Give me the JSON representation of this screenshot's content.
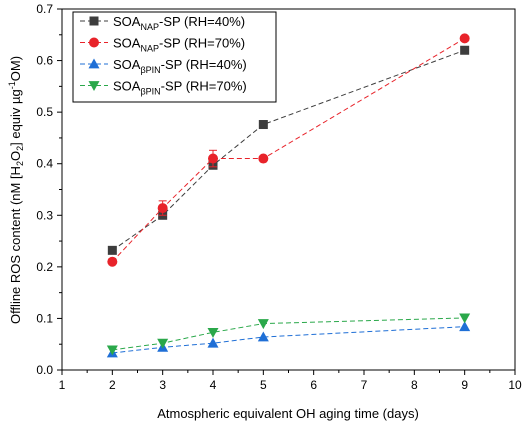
{
  "chart_data": {
    "type": "scatter",
    "xlabel": "Atmospheric equivalent OH aging time (days)",
    "ylabel": "Offline ROS content (nM [H2O2] equiv µg⁻¹OM)",
    "ylabel_parts": {
      "pre": "Offline ROS content (nM [H",
      "sub1": "2",
      "mid": "O",
      "sub2": "2",
      "post1": "] equiv µg",
      "sup": "-1",
      "post2": "OM)"
    },
    "xlim": [
      1,
      10
    ],
    "ylim": [
      0.0,
      0.7
    ],
    "xticks": [
      1,
      2,
      3,
      4,
      5,
      6,
      7,
      8,
      9,
      10
    ],
    "yticks": [
      0.0,
      0.1,
      0.2,
      0.3,
      0.4,
      0.5,
      0.6,
      0.7
    ],
    "ytick_labels": [
      "0.0",
      "0.1",
      "0.2",
      "0.3",
      "0.4",
      "0.5",
      "0.6",
      "0.7"
    ],
    "legend_position": "top-left",
    "series": [
      {
        "name": "SOA_NAP-SP (RH=40%)",
        "label_base": "SOA",
        "label_sub": "NAP",
        "label_tail": "-SP (RH=40%)",
        "marker": "square",
        "color": "#3d3d3d",
        "x": [
          2,
          3,
          4,
          5,
          9
        ],
        "y": [
          0.232,
          0.3,
          0.397,
          0.476,
          0.62
        ],
        "err": [
          0,
          0,
          0,
          0,
          0
        ]
      },
      {
        "name": "SOA_NAP-SP (RH=70%)",
        "label_base": "SOA",
        "label_sub": "NAP",
        "label_tail": "-SP (RH=70%)",
        "marker": "circle",
        "color": "#e8232a",
        "x": [
          2,
          3,
          4,
          5,
          9
        ],
        "y": [
          0.21,
          0.314,
          0.41,
          0.41,
          0.643
        ],
        "err": [
          0,
          0.014,
          0.016,
          0,
          0
        ]
      },
      {
        "name": "SOA_βPIN-SP (RH=40%)",
        "label_base": "SOA",
        "label_sub": "βPIN",
        "label_tail": "-SP (RH=40%)",
        "marker": "triangle-up",
        "color": "#1f6fd6",
        "x": [
          2,
          3,
          4,
          5,
          9
        ],
        "y": [
          0.033,
          0.044,
          0.052,
          0.064,
          0.084
        ],
        "err": [
          0,
          0,
          0,
          0,
          0
        ]
      },
      {
        "name": "SOA_βPIN-SP (RH=70%)",
        "label_base": "SOA",
        "label_sub": "βPIN",
        "label_tail": "-SP (RH=70%)",
        "marker": "triangle-down",
        "color": "#2aa84a",
        "x": [
          2,
          3,
          4,
          5,
          9
        ],
        "y": [
          0.039,
          0.052,
          0.073,
          0.09,
          0.101
        ],
        "err": [
          0,
          0,
          0,
          0,
          0
        ]
      }
    ]
  }
}
